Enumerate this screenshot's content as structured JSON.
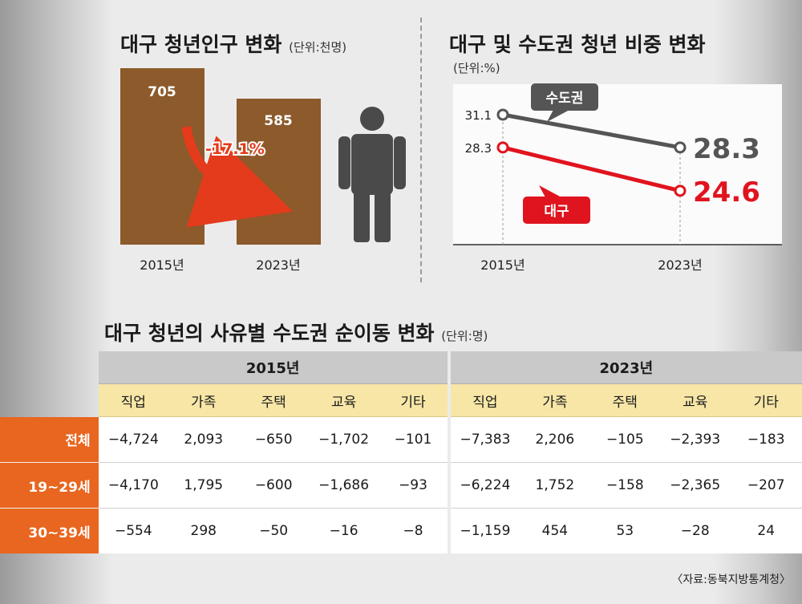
{
  "chart_data": [
    {
      "type": "bar",
      "title": "대구 청년인구 변화",
      "unit": "(단위:천명)",
      "categories": [
        "2015년",
        "2023년"
      ],
      "values": [
        705,
        585
      ],
      "value_labels": [
        "705",
        "585"
      ],
      "annotation": "-17.1%",
      "colors": {
        "bar": "#8c5a2b",
        "arrow": "#e33b1c",
        "person": "#4a4a4a"
      }
    },
    {
      "type": "line",
      "title": "대구 및 수도권 청년 비중 변화",
      "unit": "(단위:%)",
      "categories": [
        "2015년",
        "2023년"
      ],
      "series": [
        {
          "name": "수도권",
          "values": [
            31.1,
            28.3
          ],
          "labels": [
            "31.1",
            "28.3"
          ],
          "color": "#555555"
        },
        {
          "name": "대구",
          "values": [
            28.3,
            24.6
          ],
          "labels": [
            "28.3",
            "24.6"
          ],
          "color": "#e0141e"
        }
      ]
    },
    {
      "type": "table",
      "title": "대구 청년의 사유별 수도권 순이동 변화",
      "unit": "(단위:명)",
      "years": [
        "2015년",
        "2023년"
      ],
      "categories": [
        "직업",
        "가족",
        "주택",
        "교육",
        "기타"
      ],
      "rows": [
        {
          "label": "전체",
          "values": [
            "−4,724",
            "2,093",
            "−650",
            "−1,702",
            "−101",
            "−7,383",
            "2,206",
            "−105",
            "−2,393",
            "−183"
          ]
        },
        {
          "label": "19~29세",
          "values": [
            "−4,170",
            "1,795",
            "−600",
            "−1,686",
            "−93",
            "−6,224",
            "1,752",
            "−158",
            "−2,365",
            "−207"
          ]
        },
        {
          "label": "30~39세",
          "values": [
            "−554",
            "298",
            "−50",
            "−16",
            "−8",
            "−1,159",
            "454",
            "53",
            "−28",
            "24"
          ]
        }
      ]
    }
  ],
  "source": "〈자료:동북지방통계청〉"
}
